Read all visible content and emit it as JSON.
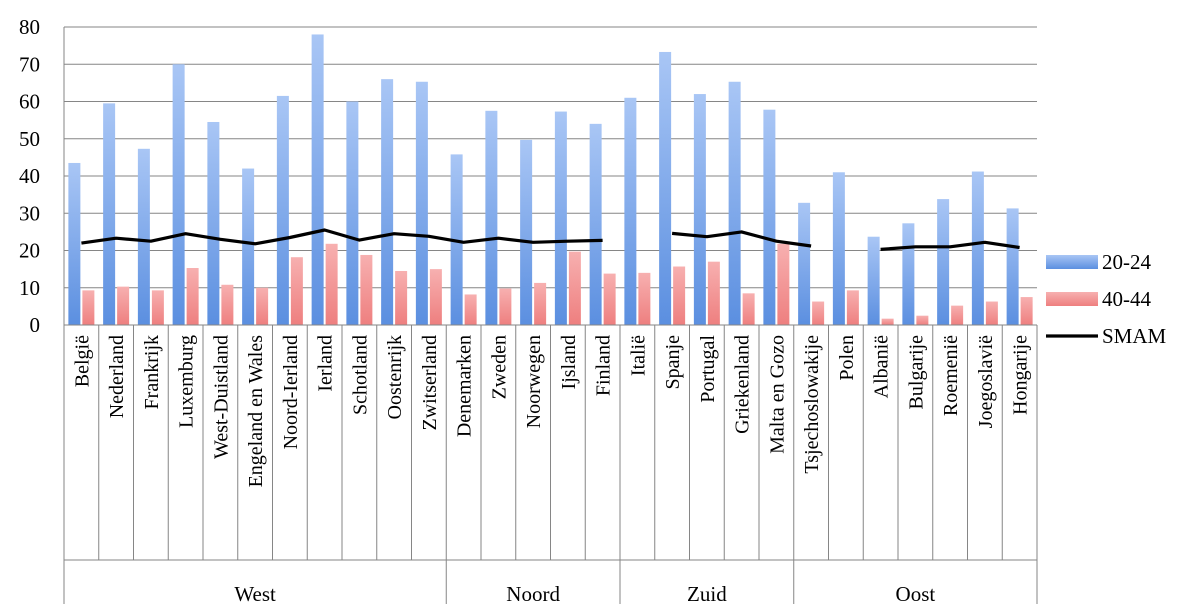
{
  "chart_data": {
    "type": "bar",
    "ylim": [
      0,
      80
    ],
    "yticks": [
      "0",
      "10",
      "20",
      "30",
      "40",
      "50",
      "60",
      "70",
      "80"
    ],
    "grid": "horizontal",
    "legend_position": "right",
    "categories": [
      "België",
      "Nederland",
      "Frankrijk",
      "Luxemburg",
      "West-Duistland",
      "Engeland en Wales",
      "Noord-Ierland",
      "Ierland",
      "Schotland",
      "Oostenrijk",
      "Zwitserland",
      "Denemarken",
      "Zweden",
      "Noorwegen",
      "Ijsland",
      "Finland",
      "Italië",
      "Spanje",
      "Portugal",
      "Griekenland",
      "Malta en Gozo",
      "Tsjechoslowakije",
      "Polen",
      "Albanië",
      "Bulgarije",
      "Roemenië",
      "Joegoslavië",
      "Hongarije"
    ],
    "groups": [
      {
        "label": "West",
        "count": 11
      },
      {
        "label": "Noord",
        "count": 5
      },
      {
        "label": "Zuid",
        "count": 5
      },
      {
        "label": "Oost",
        "count": 7
      }
    ],
    "series": [
      {
        "name": "20-24",
        "kind": "bar",
        "color": "#5b8fe0",
        "values": [
          43.5,
          59.5,
          47.3,
          70.0,
          54.5,
          42.0,
          61.5,
          78.0,
          60.0,
          66.0,
          65.3,
          45.8,
          57.5,
          49.7,
          57.3,
          54.0,
          61.0,
          73.3,
          62.0,
          65.3,
          57.8,
          32.8,
          41.0,
          23.7,
          27.3,
          33.8,
          41.2,
          31.3
        ]
      },
      {
        "name": "40-44",
        "kind": "bar",
        "color": "#ee7f7f",
        "values": [
          9.3,
          10.3,
          9.3,
          15.3,
          10.8,
          10.0,
          18.2,
          21.8,
          18.8,
          14.5,
          15.0,
          8.2,
          9.8,
          11.3,
          19.7,
          13.8,
          14.0,
          15.7,
          17.0,
          8.5,
          21.8,
          6.3,
          9.3,
          1.7,
          2.5,
          5.2,
          6.3,
          7.5
        ]
      },
      {
        "name": "SMAM",
        "kind": "line",
        "color": "#000000",
        "values": [
          22.0,
          23.3,
          22.5,
          24.5,
          23.0,
          21.8,
          23.5,
          25.5,
          22.8,
          24.5,
          23.8,
          22.2,
          23.3,
          22.2,
          22.5,
          22.7,
          null,
          24.6,
          23.7,
          25.0,
          22.5,
          21.2,
          null,
          20.3,
          21.0,
          21.0,
          22.2,
          20.8
        ]
      }
    ]
  }
}
